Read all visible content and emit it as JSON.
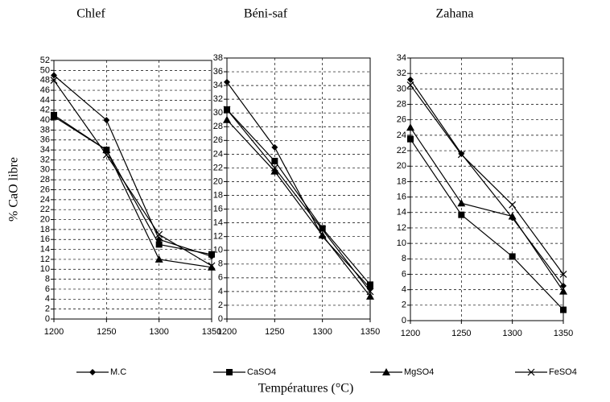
{
  "chart_data": [
    {
      "type": "line",
      "title": "Chlef",
      "ylabel": "% CaO libre",
      "x": [
        1200,
        1250,
        1300,
        1350
      ],
      "xlim": [
        1200,
        1350
      ],
      "xticks": [
        1200,
        1250,
        1300,
        1350
      ],
      "ylim": [
        0,
        52
      ],
      "yticks": [
        0,
        2,
        4,
        6,
        8,
        10,
        12,
        14,
        16,
        18,
        20,
        22,
        24,
        26,
        28,
        30,
        32,
        34,
        36,
        38,
        40,
        42,
        44,
        46,
        48,
        50,
        52
      ],
      "grid": true,
      "series": [
        {
          "name": "M.C",
          "color": "#000000",
          "marker": "diamond",
          "values": [
            49,
            40,
            16,
            12.6
          ]
        },
        {
          "name": "CaSO4",
          "color": "#000000",
          "marker": "square",
          "values": [
            41,
            34,
            15,
            13
          ]
        },
        {
          "name": "MgSO4",
          "color": "#000000",
          "marker": "triangle",
          "values": [
            40.7,
            34,
            12,
            10.4
          ]
        },
        {
          "name": "FeSO4",
          "color": "#000000",
          "marker": "x",
          "values": [
            48,
            33,
            17,
            10.7
          ]
        }
      ]
    },
    {
      "type": "line",
      "title": "Béni-saf",
      "xlabel": "Températures (°C)",
      "x": [
        1200,
        1250,
        1300,
        1350
      ],
      "xlim": [
        1200,
        1350
      ],
      "xticks": [
        1200,
        1250,
        1300,
        1350
      ],
      "ylim": [
        0,
        38
      ],
      "yticks": [
        0,
        2,
        4,
        6,
        8,
        10,
        12,
        14,
        16,
        18,
        20,
        22,
        24,
        26,
        28,
        30,
        32,
        34,
        36,
        38
      ],
      "grid": true,
      "series": [
        {
          "color": "#000000",
          "marker": "diamond",
          "values": [
            34.5,
            25,
            12,
            4.5
          ]
        },
        {
          "color": "#000000",
          "marker": "square",
          "values": [
            30.5,
            23,
            13.2,
            5
          ]
        },
        {
          "color": "#000000",
          "marker": "triangle",
          "values": [
            29,
            21.5,
            12.2,
            3.3
          ]
        },
        {
          "color": "#000000",
          "marker": "x",
          "values": [
            30.5,
            22,
            13,
            4
          ]
        }
      ]
    },
    {
      "type": "line",
      "title": "Zahana",
      "x": [
        1200,
        1250,
        1300,
        1350
      ],
      "xlim": [
        1200,
        1350
      ],
      "xticks": [
        1200,
        1250,
        1300,
        1350
      ],
      "ylim": [
        0,
        34
      ],
      "yticks": [
        0,
        2,
        4,
        6,
        8,
        10,
        12,
        14,
        16,
        18,
        20,
        22,
        24,
        26,
        28,
        30,
        32,
        34
      ],
      "grid": true,
      "series": [
        {
          "color": "#000000",
          "marker": "diamond",
          "values": [
            31.2,
            21.6,
            13.3,
            4.5
          ]
        },
        {
          "color": "#000000",
          "marker": "square",
          "values": [
            23.5,
            13.7,
            8.3,
            1.4
          ]
        },
        {
          "color": "#000000",
          "marker": "triangle",
          "values": [
            25,
            15.2,
            13.5,
            3.8
          ]
        },
        {
          "color": "#000000",
          "marker": "x",
          "values": [
            30.5,
            21.5,
            15,
            6
          ]
        }
      ]
    }
  ]
}
